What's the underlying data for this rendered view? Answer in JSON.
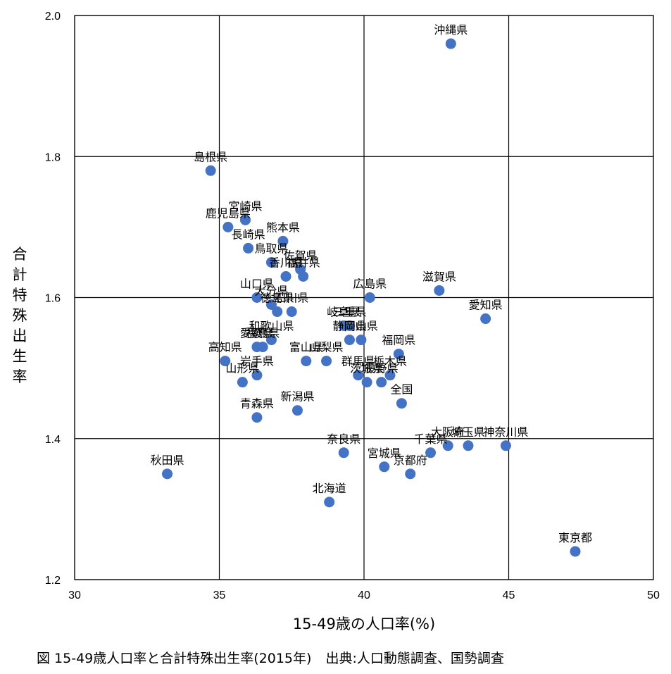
{
  "chart_data": {
    "type": "scatter",
    "xlabel": "15-49歳の人口率(%)",
    "ylabel": "合計特殊出生率",
    "xlim": [
      30,
      50
    ],
    "ylim": [
      1.2,
      2.0
    ],
    "xticks": [
      30,
      35,
      40,
      45,
      50
    ],
    "yticks": [
      1.2,
      1.4,
      1.6,
      1.8,
      2.0
    ],
    "xtick_labels": [
      "30",
      "35",
      "40",
      "45",
      "50"
    ],
    "ytick_labels": [
      "1.2",
      "1.4",
      "1.6",
      "1.8",
      "2.0"
    ],
    "grid": true,
    "marker_color": "#4472C4",
    "points": [
      {
        "label": "沖縄県",
        "x": 43.0,
        "y": 1.96
      },
      {
        "label": "島根県",
        "x": 34.7,
        "y": 1.78
      },
      {
        "label": "宮崎県",
        "x": 35.9,
        "y": 1.71
      },
      {
        "label": "鹿児島県",
        "x": 35.3,
        "y": 1.7
      },
      {
        "label": "長崎県",
        "x": 36.0,
        "y": 1.67
      },
      {
        "label": "熊本県",
        "x": 37.2,
        "y": 1.68
      },
      {
        "label": "鳥取県",
        "x": 36.8,
        "y": 1.65
      },
      {
        "label": "佐賀県",
        "x": 37.8,
        "y": 1.64
      },
      {
        "label": "香川県",
        "x": 37.3,
        "y": 1.63
      },
      {
        "label": "福井県",
        "x": 37.9,
        "y": 1.63
      },
      {
        "label": "広島県",
        "x": 40.2,
        "y": 1.6
      },
      {
        "label": "滋賀県",
        "x": 42.6,
        "y": 1.61
      },
      {
        "label": "山口県",
        "x": 36.3,
        "y": 1.6
      },
      {
        "label": "大分県",
        "x": 36.8,
        "y": 1.59
      },
      {
        "label": "徳島県",
        "x": 37.0,
        "y": 1.58
      },
      {
        "label": "石川県",
        "x": 37.5,
        "y": 1.58
      },
      {
        "label": "愛知県",
        "x": 44.2,
        "y": 1.57
      },
      {
        "label": "岐阜県",
        "x": 39.3,
        "y": 1.56
      },
      {
        "label": "三重県",
        "x": 39.5,
        "y": 1.56
      },
      {
        "label": "静岡県",
        "x": 39.5,
        "y": 1.54
      },
      {
        "label": "岡山県",
        "x": 39.9,
        "y": 1.54
      },
      {
        "label": "和歌山県",
        "x": 36.8,
        "y": 1.54
      },
      {
        "label": "愛媛県",
        "x": 36.3,
        "y": 1.53
      },
      {
        "label": "福島県",
        "x": 36.5,
        "y": 1.53
      },
      {
        "label": "福岡県",
        "x": 41.2,
        "y": 1.52
      },
      {
        "label": "高知県",
        "x": 35.2,
        "y": 1.51
      },
      {
        "label": "富山県",
        "x": 38.0,
        "y": 1.51
      },
      {
        "label": "山梨県",
        "x": 38.7,
        "y": 1.51
      },
      {
        "label": "岩手県",
        "x": 36.3,
        "y": 1.49
      },
      {
        "label": "山形県",
        "x": 35.8,
        "y": 1.48
      },
      {
        "label": "群馬県",
        "x": 39.8,
        "y": 1.49
      },
      {
        "label": "茨城県",
        "x": 40.1,
        "y": 1.48
      },
      {
        "label": "長野県",
        "x": 40.6,
        "y": 1.48
      },
      {
        "label": "栃木県",
        "x": 40.9,
        "y": 1.49
      },
      {
        "label": "全国",
        "x": 41.3,
        "y": 1.45
      },
      {
        "label": "新潟県",
        "x": 37.7,
        "y": 1.44
      },
      {
        "label": "青森県",
        "x": 36.3,
        "y": 1.43
      },
      {
        "label": "秋田県",
        "x": 33.2,
        "y": 1.35
      },
      {
        "label": "奈良県",
        "x": 39.3,
        "y": 1.38
      },
      {
        "label": "宮城県",
        "x": 40.7,
        "y": 1.36
      },
      {
        "label": "京都府",
        "x": 41.6,
        "y": 1.35
      },
      {
        "label": "千葉県",
        "x": 42.3,
        "y": 1.38
      },
      {
        "label": "大阪府",
        "x": 42.9,
        "y": 1.39
      },
      {
        "label": "埼玉県",
        "x": 43.6,
        "y": 1.39
      },
      {
        "label": "神奈川県",
        "x": 44.9,
        "y": 1.39
      },
      {
        "label": "北海道",
        "x": 38.8,
        "y": 1.31
      },
      {
        "label": "東京都",
        "x": 47.3,
        "y": 1.24
      }
    ]
  },
  "caption": {
    "figure": "図 15-49歳人口率と合計特殊出生率(2015年)",
    "source": "出典:人口動態調査、国勢調査"
  }
}
